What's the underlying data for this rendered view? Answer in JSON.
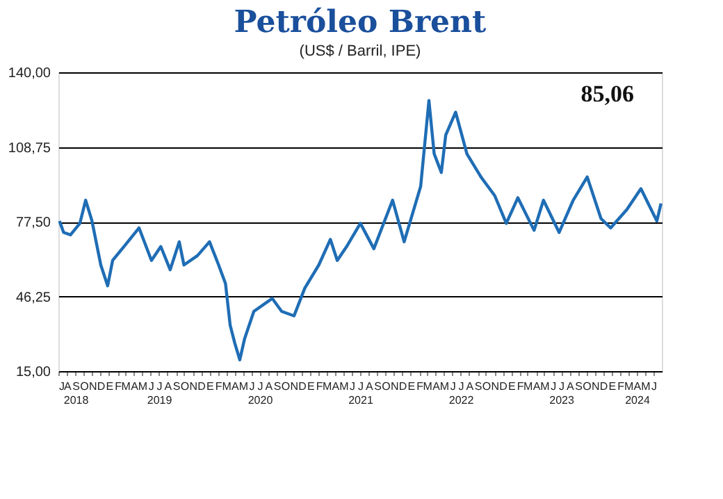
{
  "chart_data": {
    "type": "line",
    "title": "Petróleo Brent",
    "subtitle": "(US$ / Barril, IPE)",
    "annotations": [
      "85,06"
    ],
    "x": [
      "2018-07-05",
      "2018-07-20",
      "2018-08-14",
      "2018-09-17",
      "2018-10-08",
      "2018-10-31",
      "2018-12-02",
      "2018-12-27",
      "2019-01-14",
      "2019-02-24",
      "2019-04-20",
      "2019-06-04",
      "2019-07-08",
      "2019-08-11",
      "2019-09-13",
      "2019-09-30",
      "2019-11-18",
      "2020-01-01",
      "2020-02-03",
      "2020-02-28",
      "2020-03-16",
      "2020-04-02",
      "2020-04-20",
      "2020-05-07",
      "2020-06-10",
      "2020-08-16",
      "2020-09-19",
      "2020-11-03",
      "2020-12-12",
      "2021-02-01",
      "2021-03-15",
      "2021-04-09",
      "2021-05-13",
      "2021-07-02",
      "2021-08-20",
      "2021-10-27",
      "2021-12-08",
      "2022-02-06",
      "2022-03-08",
      "2022-03-27",
      "2022-04-22",
      "2022-05-08",
      "2022-06-13",
      "2022-07-24",
      "2022-09-13",
      "2022-11-02",
      "2022-12-14",
      "2023-01-25",
      "2023-03-25",
      "2023-04-28",
      "2023-06-24",
      "2023-08-14",
      "2023-10-04",
      "2023-11-23",
      "2023-12-28",
      "2024-02-25",
      "2024-04-16",
      "2024-06-13",
      "2024-06-28"
    ],
    "series": [
      {
        "color": "#1f6db5",
        "values": [
          77.8,
          73.0,
          72,
          76.8,
          86.5,
          77.8,
          59.4,
          50.7,
          61.3,
          67.1,
          74.9,
          61.3,
          67.1,
          57.4,
          69.1,
          59.4,
          63.3,
          69.1,
          59.4,
          51.6,
          34.2,
          26.6,
          19.7,
          28.4,
          40,
          45.4,
          40,
          38.1,
          49.7,
          59.4,
          70.1,
          61.3,
          67.1,
          76.8,
          66.2,
          86.5,
          69.1,
          92.3,
          128.2,
          105.9,
          98.1,
          113.7,
          123.3,
          105.9,
          96.2,
          88.4,
          76.8,
          87.5,
          73.9,
          86.5,
          73.0,
          86.5,
          96.2,
          78.8,
          74.9,
          82.6,
          91.3,
          77.8,
          85.1
        ]
      }
    ],
    "xlim": [
      "2018-07-01",
      "2024-07-01"
    ],
    "xticks": [
      {
        "value": "2018-07-01",
        "label": "J"
      },
      {
        "value": "2018-08-01",
        "label": "A"
      },
      {
        "value": "2018-09-01",
        "label": "S\n2018"
      },
      {
        "value": "2018-10-01",
        "label": "O"
      },
      {
        "value": "2018-11-01",
        "label": "N"
      },
      {
        "value": "2018-12-01",
        "label": "D"
      },
      {
        "value": "2019-01-01",
        "label": "E"
      },
      {
        "value": "2019-02-01",
        "label": "F"
      },
      {
        "value": "2019-03-01",
        "label": "M"
      },
      {
        "value": "2019-04-01",
        "label": "A"
      },
      {
        "value": "2019-05-01",
        "label": "M"
      },
      {
        "value": "2019-06-01",
        "label": "J"
      },
      {
        "value": "2019-07-01",
        "label": "J\n2019"
      },
      {
        "value": "2019-08-01",
        "label": "A"
      },
      {
        "value": "2019-09-01",
        "label": "S"
      },
      {
        "value": "2019-10-01",
        "label": "O"
      },
      {
        "value": "2019-11-01",
        "label": "N"
      },
      {
        "value": "2019-12-01",
        "label": "D"
      },
      {
        "value": "2020-01-01",
        "label": "E"
      },
      {
        "value": "2020-02-01",
        "label": "F"
      },
      {
        "value": "2020-03-01",
        "label": "M"
      },
      {
        "value": "2020-04-01",
        "label": "A"
      },
      {
        "value": "2020-05-01",
        "label": "M"
      },
      {
        "value": "2020-06-01",
        "label": "J"
      },
      {
        "value": "2020-07-01",
        "label": "J\n2020"
      },
      {
        "value": "2020-08-01",
        "label": "A"
      },
      {
        "value": "2020-09-01",
        "label": "S"
      },
      {
        "value": "2020-10-01",
        "label": "O"
      },
      {
        "value": "2020-11-01",
        "label": "N"
      },
      {
        "value": "2020-12-01",
        "label": "D"
      },
      {
        "value": "2021-01-01",
        "label": "E"
      },
      {
        "value": "2021-02-01",
        "label": "F"
      },
      {
        "value": "2021-03-01",
        "label": "M"
      },
      {
        "value": "2021-04-01",
        "label": "A"
      },
      {
        "value": "2021-05-01",
        "label": "M"
      },
      {
        "value": "2021-06-01",
        "label": "J"
      },
      {
        "value": "2021-07-01",
        "label": "J\n2021"
      },
      {
        "value": "2021-08-01",
        "label": "A"
      },
      {
        "value": "2021-09-01",
        "label": "S"
      },
      {
        "value": "2021-10-01",
        "label": "O"
      },
      {
        "value": "2021-11-01",
        "label": "N"
      },
      {
        "value": "2021-12-01",
        "label": "D"
      },
      {
        "value": "2022-01-01",
        "label": "E"
      },
      {
        "value": "2022-02-01",
        "label": "F"
      },
      {
        "value": "2022-03-01",
        "label": "M"
      },
      {
        "value": "2022-04-01",
        "label": "A"
      },
      {
        "value": "2022-05-01",
        "label": "M"
      },
      {
        "value": "2022-06-01",
        "label": "J"
      },
      {
        "value": "2022-07-01",
        "label": "J\n2022"
      },
      {
        "value": "2022-08-01",
        "label": "A"
      },
      {
        "value": "2022-09-01",
        "label": "S"
      },
      {
        "value": "2022-10-01",
        "label": "O"
      },
      {
        "value": "2022-11-01",
        "label": "N"
      },
      {
        "value": "2022-12-01",
        "label": "D"
      },
      {
        "value": "2023-01-01",
        "label": "E"
      },
      {
        "value": "2023-02-01",
        "label": "F"
      },
      {
        "value": "2023-03-01",
        "label": "M"
      },
      {
        "value": "2023-04-01",
        "label": "A"
      },
      {
        "value": "2023-05-01",
        "label": "M"
      },
      {
        "value": "2023-06-01",
        "label": "J"
      },
      {
        "value": "2023-07-01",
        "label": "J\n2023"
      },
      {
        "value": "2023-08-01",
        "label": "A"
      },
      {
        "value": "2023-09-01",
        "label": "S"
      },
      {
        "value": "2023-10-01",
        "label": "O"
      },
      {
        "value": "2023-11-01",
        "label": "N"
      },
      {
        "value": "2023-12-01",
        "label": "D"
      },
      {
        "value": "2024-01-01",
        "label": "E"
      },
      {
        "value": "2024-02-01",
        "label": "F"
      },
      {
        "value": "2024-03-01",
        "label": "M"
      },
      {
        "value": "2024-04-01",
        "label": "A\n2024"
      },
      {
        "value": "2024-05-01",
        "label": "M"
      },
      {
        "value": "2024-06-01",
        "label": "J"
      }
    ],
    "ylim": [
      15,
      140
    ],
    "yticks": [
      {
        "value": 15,
        "label": "15,00"
      },
      {
        "value": 46.25,
        "label": "46,25"
      },
      {
        "value": 77.5,
        "label": "77,50"
      },
      {
        "value": 108.75,
        "label": "108,75"
      },
      {
        "value": 140,
        "label": "140,00"
      }
    ],
    "grid": "y",
    "legend": false,
    "marker": "none",
    "line_style": "solid"
  }
}
